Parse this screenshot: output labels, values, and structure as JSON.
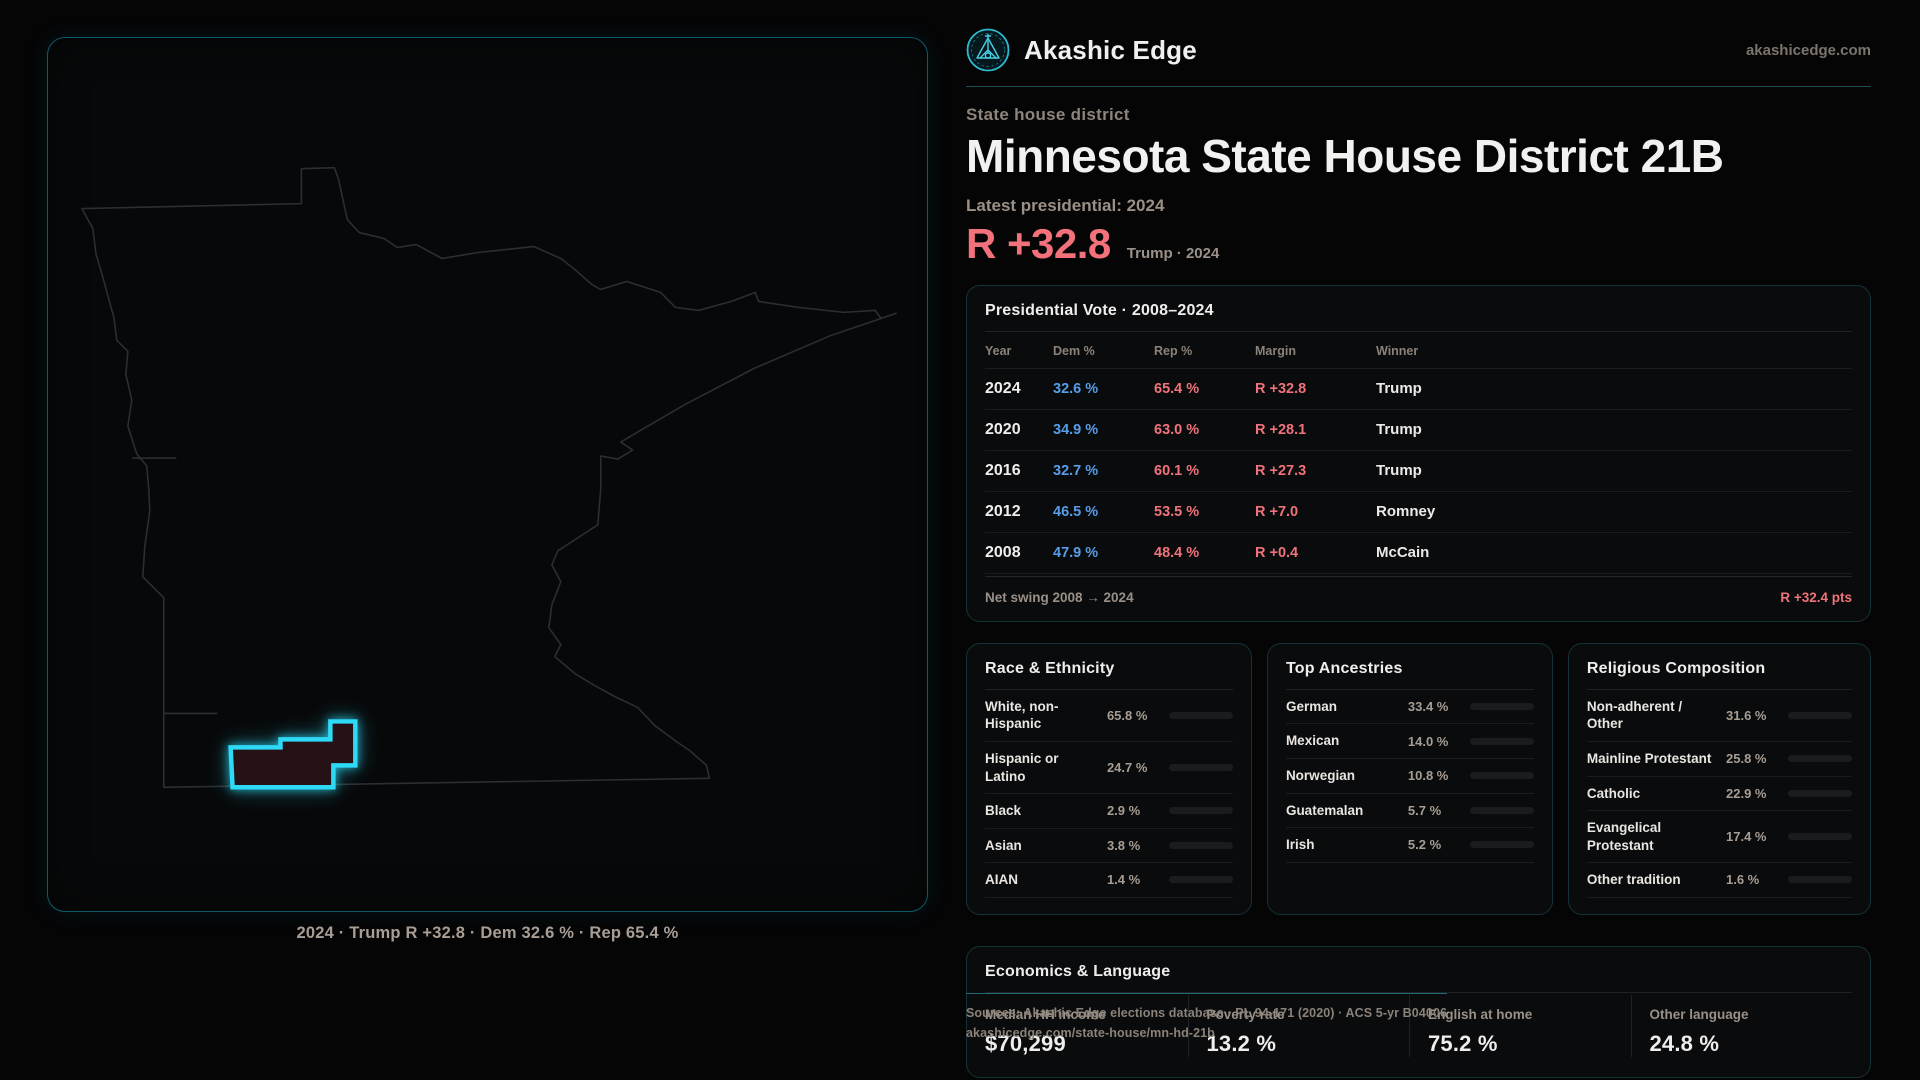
{
  "brand": {
    "name": "Akashic Edge",
    "domain": "akashicedge.com"
  },
  "header": {
    "kicker": "State house district",
    "title": "Minnesota State House District 21B",
    "latest_label": "Latest presidential: 2024",
    "margin_value": "R +32.8",
    "margin_sub": "Trump · 2024"
  },
  "map": {
    "caption": "2024 · Trump R +32.8 · Dem 32.6 % · Rep 65.4 %"
  },
  "pres_table": {
    "title": "Presidential Vote · 2008–2024",
    "columns": [
      "Year",
      "Dem %",
      "Rep %",
      "Margin",
      "Winner"
    ],
    "rows": [
      {
        "year": "2024",
        "dem": "32.6 %",
        "rep": "65.4 %",
        "margin": "R +32.8",
        "winner": "Trump"
      },
      {
        "year": "2020",
        "dem": "34.9 %",
        "rep": "63.0 %",
        "margin": "R +28.1",
        "winner": "Trump"
      },
      {
        "year": "2016",
        "dem": "32.7 %",
        "rep": "60.1 %",
        "margin": "R +27.3",
        "winner": "Trump"
      },
      {
        "year": "2012",
        "dem": "46.5 %",
        "rep": "53.5 %",
        "margin": "R +7.0",
        "winner": "Romney"
      },
      {
        "year": "2008",
        "dem": "47.9 %",
        "rep": "48.4 %",
        "margin": "R +0.4",
        "winner": "McCain"
      }
    ],
    "net_swing_label": "Net swing 2008 → 2024",
    "net_swing_value": "R +32.4 pts"
  },
  "race": {
    "title": "Race & Ethnicity",
    "rows": [
      {
        "label": "White, non-Hispanic",
        "value": "65.8 %",
        "pct": 65.8,
        "color": "#93a7c4"
      },
      {
        "label": "Hispanic or Latino",
        "value": "24.7 %",
        "pct": 24.7,
        "color": "#e5a12e"
      },
      {
        "label": "Black",
        "value": "2.9 %",
        "pct": 2.9,
        "color": "#8f7df0"
      },
      {
        "label": "Asian",
        "value": "3.8 %",
        "pct": 3.8,
        "color": "#38c9a4"
      },
      {
        "label": "AIAN",
        "value": "1.4 %",
        "pct": 1.4,
        "color": "#d97b35"
      }
    ]
  },
  "ancestries": {
    "title": "Top Ancestries",
    "rows": [
      {
        "label": "German",
        "value": "33.4 %",
        "pct": 33.4,
        "color": "#93a7c4"
      },
      {
        "label": "Mexican",
        "value": "14.0 %",
        "pct": 14.0,
        "color": "#e5a12e"
      },
      {
        "label": "Norwegian",
        "value": "10.8 %",
        "pct": 10.8,
        "color": "#8fa3bd"
      },
      {
        "label": "Guatemalan",
        "value": "5.7 %",
        "pct": 5.7,
        "color": "#e5a12e"
      },
      {
        "label": "Irish",
        "value": "5.2 %",
        "pct": 5.2,
        "color": "#a7b5cb"
      }
    ]
  },
  "religion": {
    "title": "Religious Composition",
    "rows": [
      {
        "label": "Non-adherent / Other",
        "value": "31.6 %",
        "pct": 31.6,
        "color": "#878d99"
      },
      {
        "label": "Mainline Protestant",
        "value": "25.8 %",
        "pct": 25.8,
        "color": "#4e8fe3"
      },
      {
        "label": "Catholic",
        "value": "22.9 %",
        "pct": 22.9,
        "color": "#e3b93f"
      },
      {
        "label": "Evangelical Protestant",
        "value": "17.4 %",
        "pct": 17.4,
        "color": "#e8646e"
      },
      {
        "label": "Other tradition",
        "value": "1.6 %",
        "pct": 1.6,
        "color": "#d9d9d9"
      }
    ]
  },
  "economics": {
    "title": "Economics & Language",
    "stats": [
      {
        "label": "Median HH income",
        "value": "$70,299"
      },
      {
        "label": "Poverty rate",
        "value": "13.2 %"
      },
      {
        "label": "English at home",
        "value": "75.2 %"
      },
      {
        "label": "Other language",
        "value": "24.8 %"
      }
    ]
  },
  "footer": {
    "line1": "Sources: Akashic Edge elections database · PL 94-171 (2020) · ACS 5-yr B04006",
    "line2": "akashicedge.com/state-house/mn-hd-21b"
  },
  "colors": {
    "accent_cyan": "#2ed9f6",
    "dem_blue": "#579de8",
    "rep_red": "#f0737c",
    "margin_salmon": "#f3717b"
  }
}
